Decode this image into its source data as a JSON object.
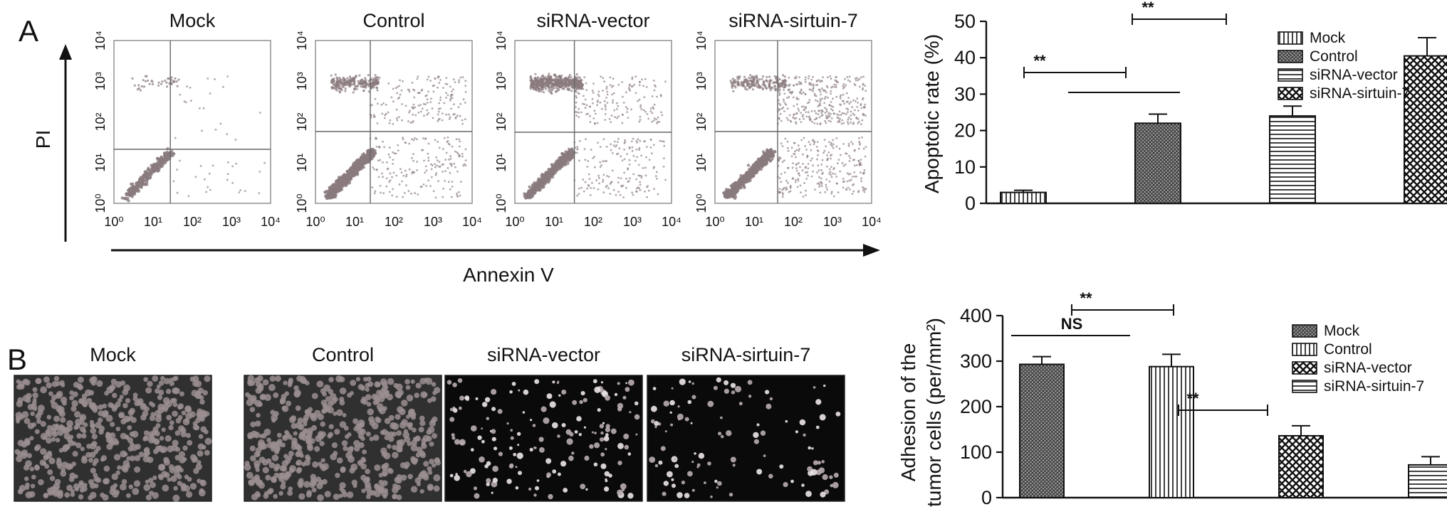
{
  "panel_labels": {
    "a": "A",
    "b": "B"
  },
  "flow_panels": {
    "titles": [
      "Mock",
      "Control",
      "siRNA-vector",
      "siRNA-sirtuin-7"
    ],
    "tick_labels": [
      "10⁰",
      "10¹",
      "10²",
      "10³",
      "10⁴"
    ],
    "x_axis_label": "Annexin V",
    "y_axis_label": "PI"
  },
  "image_panels": {
    "titles": [
      "Mock",
      "Control",
      "siRNA-vector",
      "siRNA-sirtuin-7"
    ]
  },
  "colors": {
    "dots": "#8a7a7e",
    "micro_dark": "#303030",
    "micro_black": "#0a0a0a",
    "cell_gray": "#9a8e90"
  },
  "chart_data": [
    {
      "type": "bar",
      "categories": [
        "Mock",
        "Control",
        "siRNA-vector",
        "siRNA-sirtuin-7"
      ],
      "values": [
        3,
        22,
        24,
        40.5
      ],
      "errors": [
        0.6,
        2.5,
        2.7,
        5
      ],
      "patterns": [
        "vlines",
        "dense-cross",
        "hlines",
        "check"
      ],
      "ylabel": "Apoptotic rate (%)",
      "ylim": [
        0,
        50
      ],
      "yticks": [
        0,
        10,
        20,
        30,
        40,
        50
      ],
      "legend": [
        "Mock",
        "Control",
        "siRNA-vector",
        "siRNA-sirtuin-7"
      ],
      "legend_position": "right",
      "significance": [
        "**",
        "",
        "**"
      ]
    },
    {
      "type": "bar",
      "categories": [
        "Mock",
        "Control",
        "siRNA-vector",
        "siRNA-sirtuin-7"
      ],
      "values": [
        293,
        288,
        136,
        72
      ],
      "errors": [
        17,
        27,
        22,
        18
      ],
      "patterns": [
        "dense-cross",
        "vlines",
        "check",
        "hlines"
      ],
      "ylabel_lines": [
        "Adhesion of the",
        "tumor cells (per/mm²)"
      ],
      "ylim": [
        0,
        400
      ],
      "yticks": [
        0,
        100,
        200,
        300,
        400
      ],
      "legend": [
        "Mock",
        "Control",
        "siRNA-vector",
        "siRNA-sirtuin-7"
      ],
      "legend_position": "right",
      "significance": [
        "NS",
        "**",
        "**"
      ]
    }
  ]
}
